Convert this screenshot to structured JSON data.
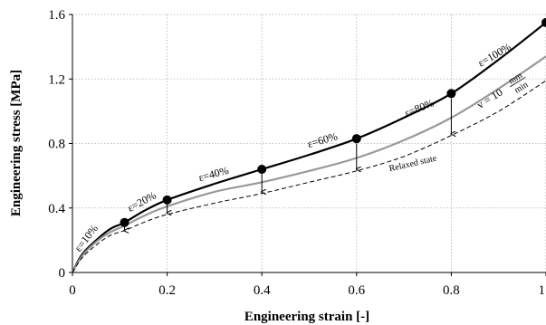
{
  "chart_data": {
    "type": "line",
    "xlabel": "Engineering strain [-]",
    "ylabel": "Engineering stress [MPa]",
    "xlim": [
      0,
      1.0
    ],
    "ylim": [
      0,
      1.6
    ],
    "xticks": [
      0,
      0.2,
      0.4,
      0.6,
      0.8,
      1.0
    ],
    "xtick_labels": [
      "0",
      "0.2",
      "0.4",
      "0.6",
      "0.8",
      "1"
    ],
    "yticks": [
      0,
      0.4,
      0.8,
      1.2,
      1.6
    ],
    "ytick_labels": [
      "0",
      "0.4",
      "0.8",
      "1.2",
      "1.6"
    ],
    "grid": true,
    "series": [
      {
        "color": "#000000",
        "style": "solid",
        "x": [
          0,
          0.02,
          0.05,
          0.08,
          0.11,
          0.15,
          0.2,
          0.3,
          0.4,
          0.5,
          0.6,
          0.7,
          0.8,
          0.9,
          1.0
        ],
        "y": [
          0,
          0.11,
          0.2,
          0.27,
          0.31,
          0.38,
          0.45,
          0.55,
          0.64,
          0.73,
          0.83,
          0.96,
          1.11,
          1.32,
          1.55
        ]
      },
      {
        "color": "#999999",
        "style": "solid",
        "x": [
          0,
          0.02,
          0.05,
          0.08,
          0.11,
          0.15,
          0.2,
          0.3,
          0.4,
          0.5,
          0.6,
          0.7,
          0.8,
          0.9,
          1.0
        ],
        "y": [
          0,
          0.1,
          0.19,
          0.25,
          0.29,
          0.35,
          0.41,
          0.5,
          0.56,
          0.63,
          0.71,
          0.82,
          0.96,
          1.14,
          1.34
        ]
      },
      {
        "color": "#000000",
        "style": "dashed",
        "x": [
          0,
          0.02,
          0.05,
          0.08,
          0.11,
          0.15,
          0.2,
          0.3,
          0.4,
          0.5,
          0.6,
          0.7,
          0.8,
          0.9,
          1.0
        ],
        "y": [
          0,
          0.09,
          0.17,
          0.23,
          0.26,
          0.31,
          0.36,
          0.43,
          0.49,
          0.56,
          0.63,
          0.72,
          0.85,
          1.0,
          1.19
        ]
      }
    ],
    "markers": [
      {
        "x": 0.11,
        "y": 0.31
      },
      {
        "x": 0.2,
        "y": 0.45
      },
      {
        "x": 0.4,
        "y": 0.64
      },
      {
        "x": 0.6,
        "y": 0.83
      },
      {
        "x": 0.8,
        "y": 1.11
      },
      {
        "x": 1.0,
        "y": 1.55
      }
    ],
    "relaxation_arrows": [
      {
        "x": 0.11,
        "y_from": 0.3,
        "y_to": 0.26
      },
      {
        "x": 0.2,
        "y_from": 0.44,
        "y_to": 0.37
      },
      {
        "x": 0.4,
        "y_from": 0.62,
        "y_to": 0.5
      },
      {
        "x": 0.6,
        "y_from": 0.8,
        "y_to": 0.64
      },
      {
        "x": 0.8,
        "y_from": 1.08,
        "y_to": 0.86
      }
    ],
    "strain_labels": [
      {
        "text": "ε=10%",
        "x": 0.035,
        "y": 0.2,
        "angle": -52
      },
      {
        "text": "ε=20%",
        "x": 0.15,
        "y": 0.42,
        "angle": -28
      },
      {
        "text": "ε=40%",
        "x": 0.3,
        "y": 0.59,
        "angle": -15
      },
      {
        "text": "ε=60%",
        "x": 0.53,
        "y": 0.8,
        "angle": -16
      },
      {
        "text": "ε=80%",
        "x": 0.735,
        "y": 1.0,
        "angle": -22
      },
      {
        "text": "ε=100%",
        "x": 0.895,
        "y": 1.33,
        "angle": -30
      }
    ],
    "velocity_label": {
      "prefix": "v = 10",
      "numerator": "mm",
      "denominator": "min",
      "x": 0.885,
      "y": 1.06,
      "angle": -32
    },
    "relaxed_label": {
      "text": "Relaxed state",
      "x": 0.72,
      "y": 0.66,
      "angle": -13
    }
  }
}
